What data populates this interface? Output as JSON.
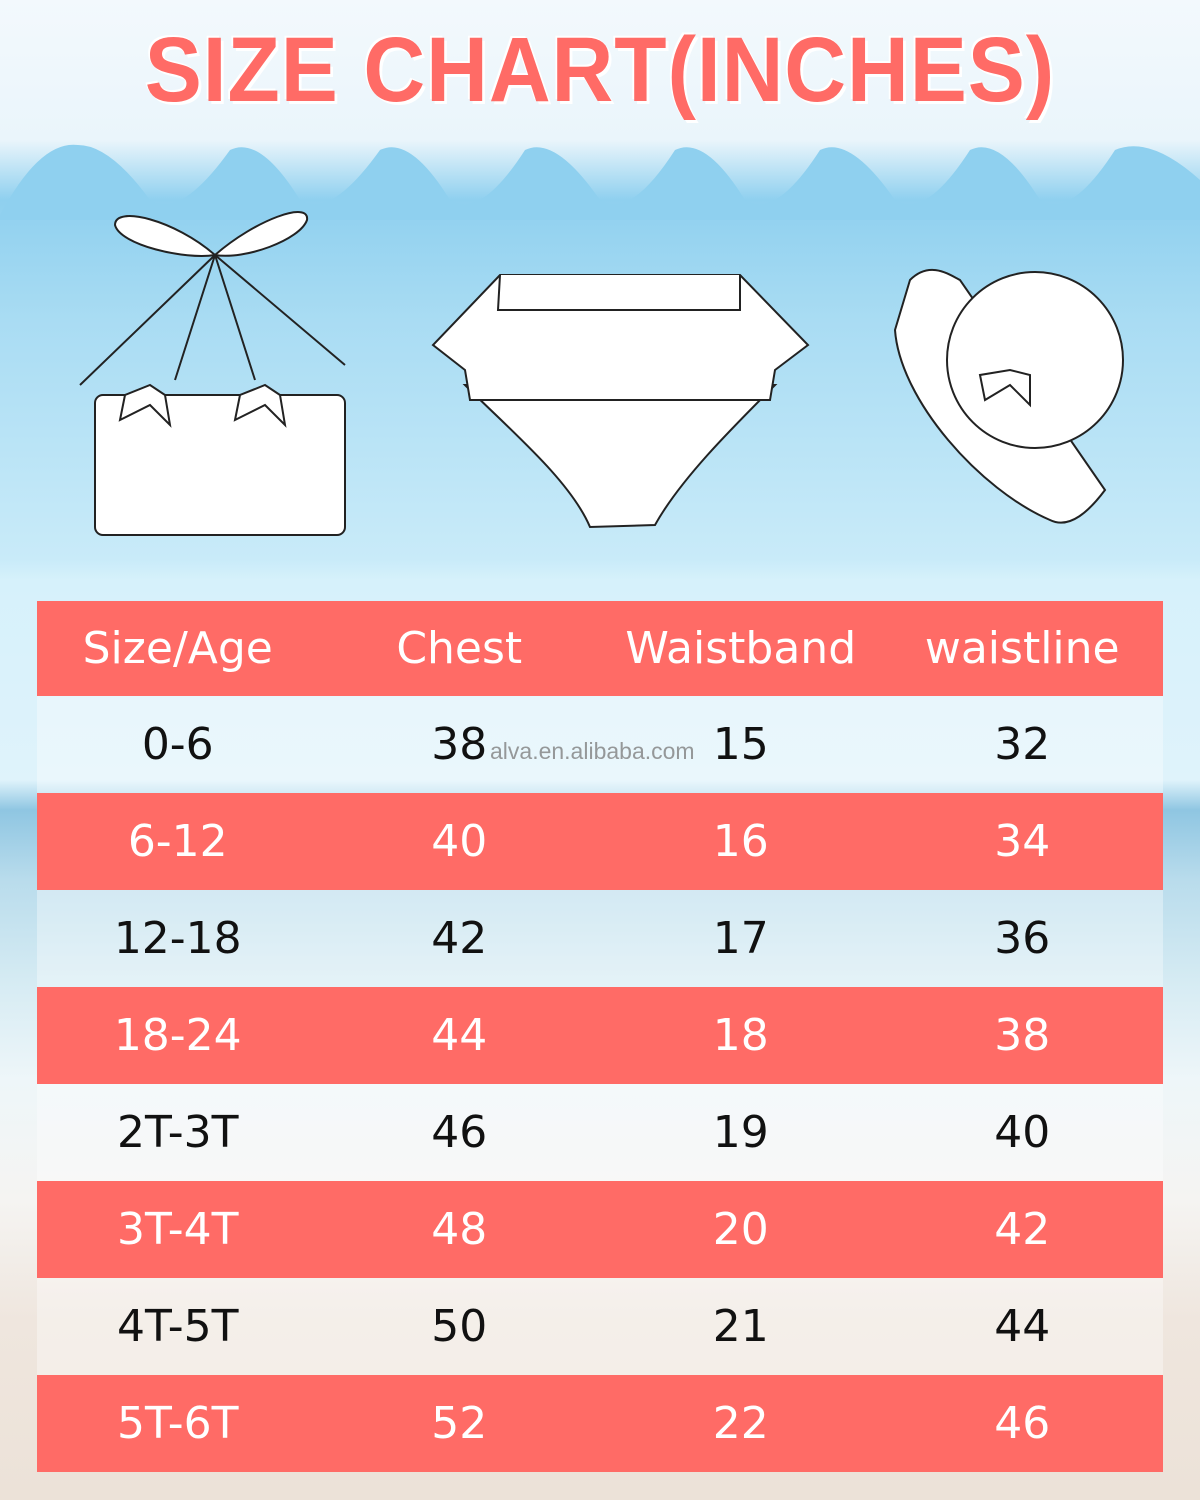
{
  "title": "SIZE CHART(INCHES)",
  "watermark": "alva.en.alibaba.com",
  "colors": {
    "accent": "#ff6b66",
    "sky": "#8fd0ef"
  },
  "illustrations": [
    "bikini-top-icon",
    "ruffle-bottom-icon",
    "sun-hat-icon"
  ],
  "table": {
    "headers": [
      "Size/Age",
      "Chest",
      "Waistband",
      "waistline"
    ],
    "rows": [
      [
        "0-6",
        "38",
        "15",
        "32"
      ],
      [
        "6-12",
        "40",
        "16",
        "34"
      ],
      [
        "12-18",
        "42",
        "17",
        "36"
      ],
      [
        "18-24",
        "44",
        "18",
        "38"
      ],
      [
        "2T-3T",
        "46",
        "19",
        "40"
      ],
      [
        "3T-4T",
        "48",
        "20",
        "42"
      ],
      [
        "4T-5T",
        "50",
        "21",
        "44"
      ],
      [
        "5T-6T",
        "52",
        "22",
        "46"
      ]
    ]
  }
}
